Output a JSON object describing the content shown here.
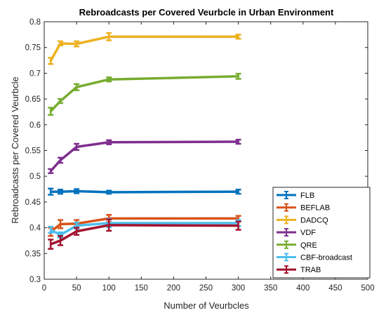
{
  "chart_data": {
    "type": "line",
    "title": "Rebroadcasts per Covered Veurbcle in Urban Environment",
    "xlabel": "Number of Veurbcles",
    "ylabel": "Rebroadcasts per Covered Veurbcle",
    "xlim": [
      0,
      500
    ],
    "ylim": [
      0.3,
      0.8
    ],
    "xticks": [
      "0",
      "50",
      "100",
      "150",
      "200",
      "250",
      "300",
      "350",
      "400",
      "450",
      "500"
    ],
    "yticks": [
      "0.3",
      "0.35",
      "0.4",
      "0.45",
      "0.5",
      "0.55",
      "0.6",
      "0.65",
      "0.7",
      "0.75",
      "0.8"
    ],
    "grid": false,
    "legend_position": "bottom-right",
    "x": [
      10,
      25,
      50,
      100,
      300
    ],
    "series": [
      {
        "name": "FLB",
        "color": "#0072BD",
        "values": [
          0.47,
          0.47,
          0.471,
          0.469,
          0.47
        ],
        "errors": [
          0.006,
          0.004,
          0.004,
          0.003,
          0.004
        ]
      },
      {
        "name": "BEFLAB",
        "color": "#D95319",
        "values": [
          0.392,
          0.407,
          0.408,
          0.418,
          0.418
        ],
        "errors": [
          0.008,
          0.008,
          0.007,
          0.007,
          0.005
        ]
      },
      {
        "name": "DADCQ",
        "color": "#EDB120",
        "values": [
          0.724,
          0.758,
          0.757,
          0.771,
          0.771
        ],
        "errors": [
          0.006,
          0.004,
          0.005,
          0.007,
          0.004
        ]
      },
      {
        "name": "VDF",
        "color": "#7E2F8E",
        "values": [
          0.51,
          0.531,
          0.557,
          0.566,
          0.567
        ],
        "errors": [
          0.004,
          0.005,
          0.006,
          0.004,
          0.004
        ]
      },
      {
        "name": "QRE",
        "color": "#77AC30",
        "values": [
          0.626,
          0.646,
          0.673,
          0.688,
          0.694
        ],
        "errors": [
          0.007,
          0.004,
          0.006,
          0.004,
          0.005
        ]
      },
      {
        "name": "CBF-broadcast",
        "color": "#4DBEEE",
        "values": [
          0.396,
          0.386,
          0.404,
          0.409,
          0.409
        ],
        "errors": [
          0.006,
          0.005,
          0.006,
          0.008,
          0.006
        ]
      },
      {
        "name": "TRAB",
        "color": "#A2142F",
        "values": [
          0.368,
          0.375,
          0.393,
          0.405,
          0.404
        ],
        "errors": [
          0.009,
          0.009,
          0.007,
          0.011,
          0.008
        ]
      }
    ]
  }
}
